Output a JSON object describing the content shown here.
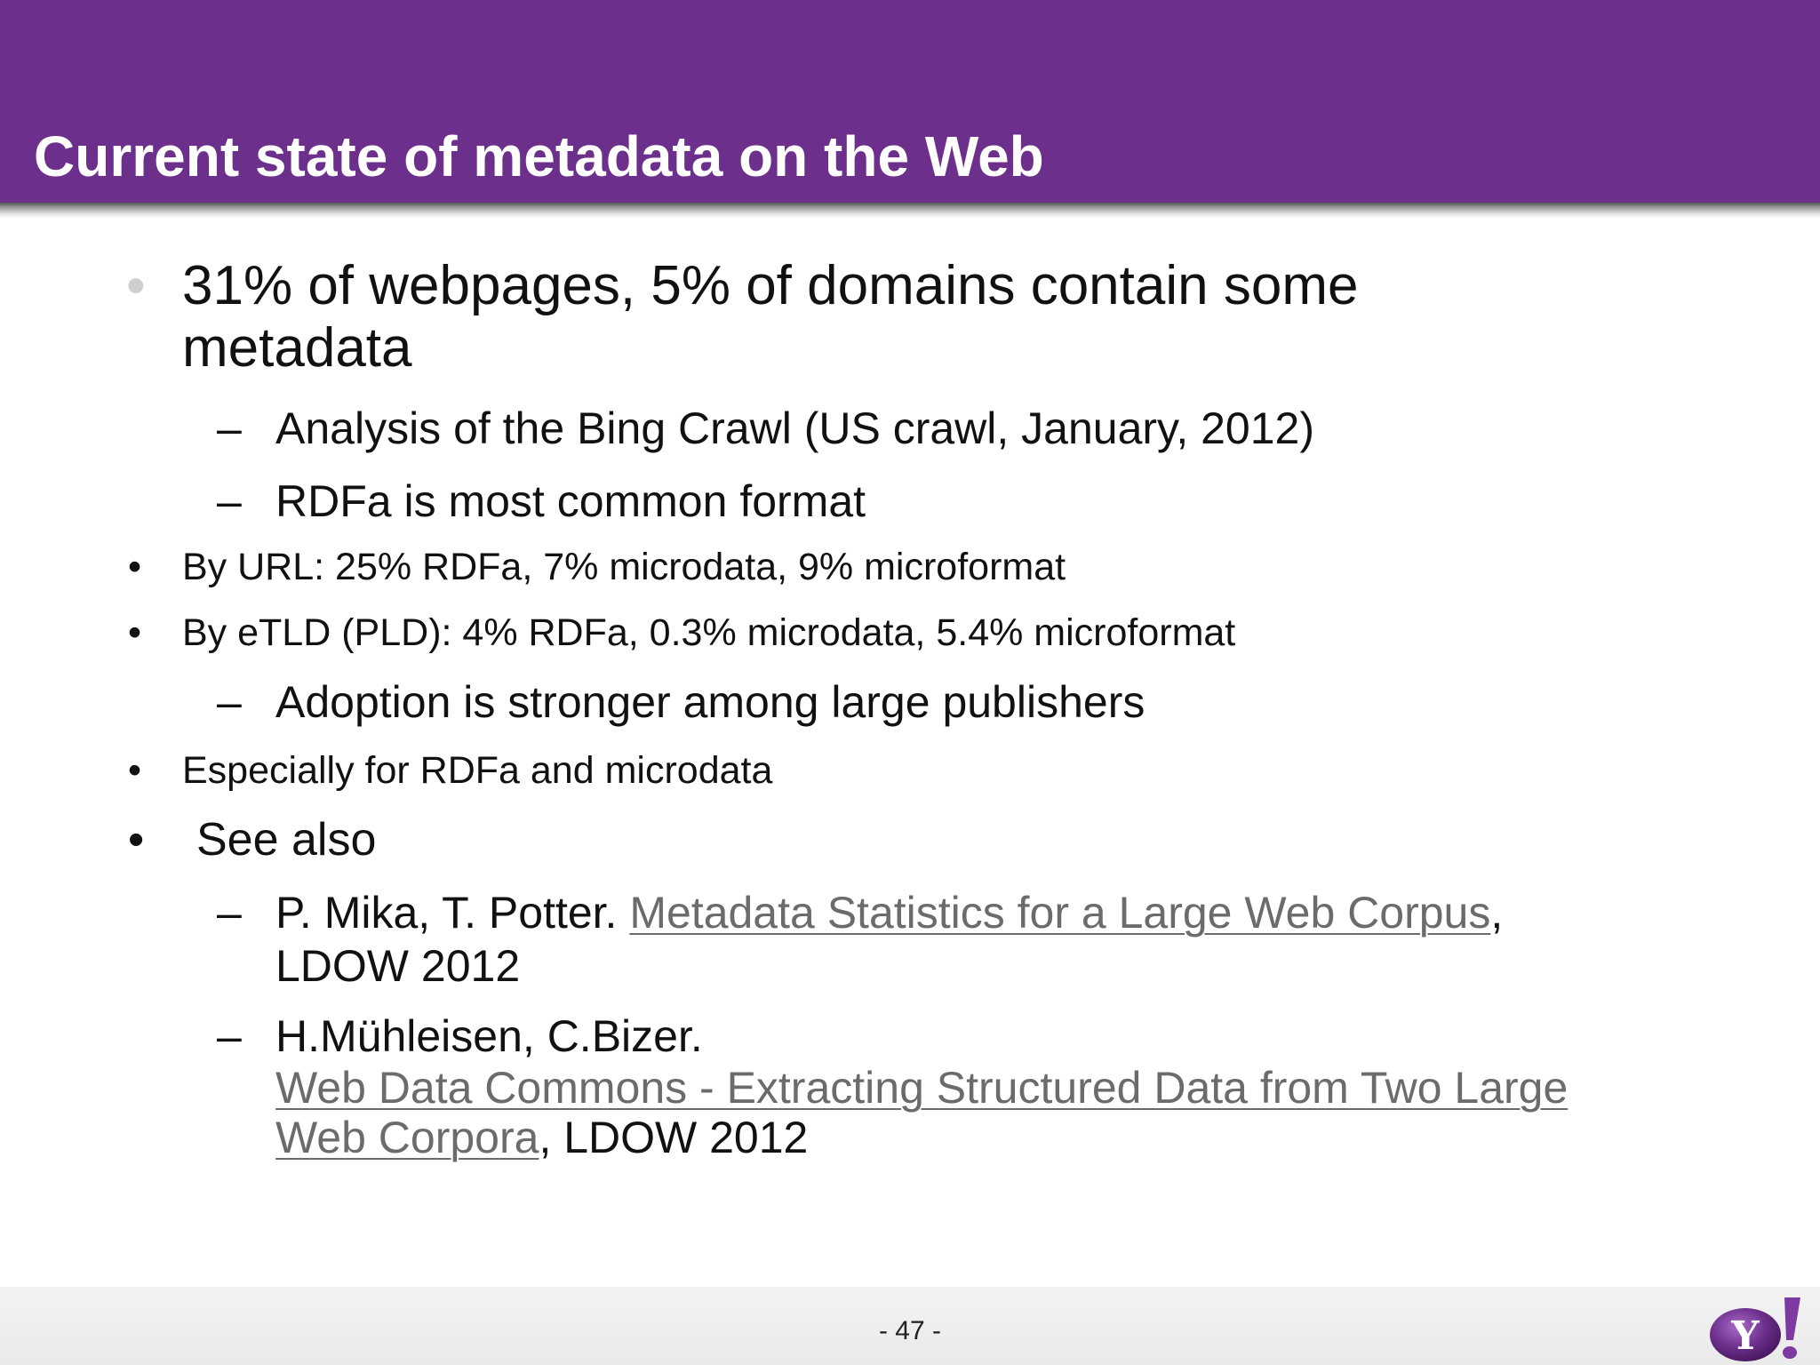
{
  "slide": {
    "title": "Current state of metadata on the Web",
    "page_number": "- 47 -",
    "colors": {
      "header": "#6c2f8b",
      "text": "#111111",
      "link": "#6b6b6b"
    },
    "logo_icon": "yahoo-logo-icon",
    "bullets": [
      {
        "marker": "•",
        "line1": "31% of webpages, 5% of domains contain some",
        "line2": "metadata"
      },
      {
        "marker": "–",
        "text": "Analysis of the Bing Crawl (US crawl, January, 2012)"
      },
      {
        "marker": "–",
        "text": "RDFa is most common format"
      },
      {
        "marker": "•",
        "text": "By URL: 25% RDFa, 7% microdata, 9% microformat"
      },
      {
        "marker": "•",
        "text": "By eTLD (PLD): 4% RDFa, 0.3% microdata, 5.4% microformat"
      },
      {
        "marker": "–",
        "text": "Adoption is stronger among large publishers"
      },
      {
        "marker": "•",
        "text": "Especially for RDFa and microdata"
      },
      {
        "marker": "•",
        "text": "See also"
      }
    ],
    "references": [
      {
        "marker": "–",
        "authors": "P. Mika, T. Potter. ",
        "link_text": "Metadata Statistics for a Large Web Corpus",
        "after_link": ",",
        "venue": "LDOW 2012"
      },
      {
        "marker": "–",
        "authors": "H.Mühleisen, C.Bizer.",
        "link_line1": "Web Data Commons - Extracting Structured Data from Two Large",
        "link_line2": "Web Corpora",
        "venue": ", LDOW 2012"
      }
    ]
  }
}
